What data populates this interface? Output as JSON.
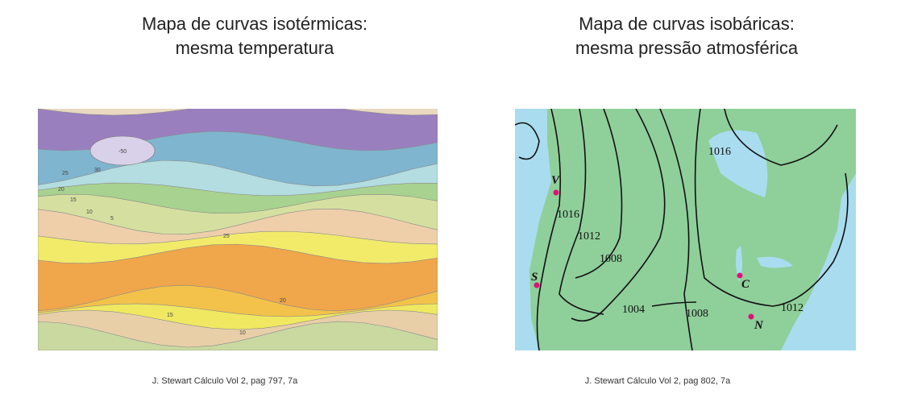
{
  "slide": {
    "left": {
      "title_lines": [
        "Mapa de curvas isotérmicas:",
        "mesma temperatura"
      ],
      "caption": "J. Stewart Cálculo Vol 2, pag 797, 7a",
      "map_labels": [
        "-50",
        "30",
        "25",
        "20",
        "15",
        "10",
        "5",
        "25",
        "20",
        "15",
        "10"
      ]
    },
    "right": {
      "title_lines": [
        "Mapa de curvas isobáricas:",
        "mesma pressão atmosférica"
      ],
      "caption": "J. Stewart Cálculo Vol 2, pag 802, 7a",
      "map_labels": [
        "1016",
        "1016",
        "1012",
        "1008",
        "1004",
        "1008",
        "1012"
      ],
      "city_labels": [
        "V",
        "S",
        "C",
        "N"
      ]
    }
  }
}
